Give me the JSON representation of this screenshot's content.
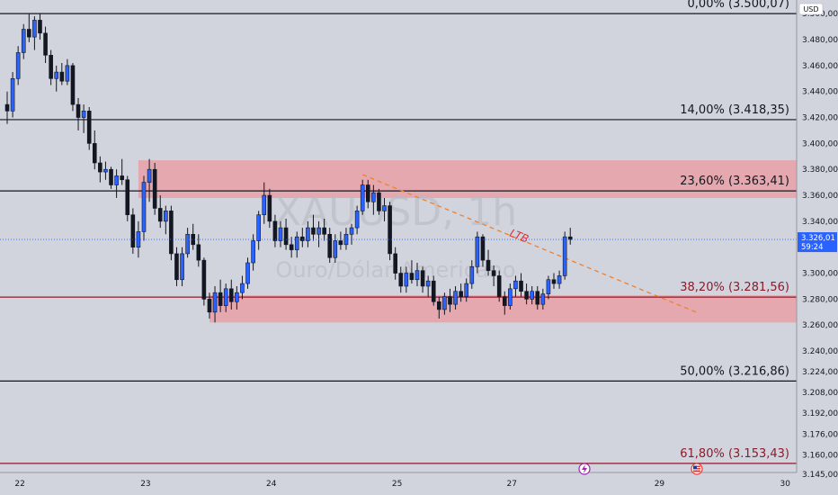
{
  "chart_data": {
    "type": "candlestick",
    "symbol": "XAUUSD, 1h",
    "description": "Ouro/Dólar Americano",
    "currency": "USD",
    "last_price": "3.326,01",
    "countdown": "59:24",
    "y_range": [
      3.145,
      3.505
    ],
    "y_ticks": [
      {
        "v": 3.5,
        "label": "3.500,00"
      },
      {
        "v": 3.48,
        "label": "3.480,00"
      },
      {
        "v": 3.46,
        "label": "3.460,00"
      },
      {
        "v": 3.44,
        "label": "3.440,00"
      },
      {
        "v": 3.42,
        "label": "3.420,00"
      },
      {
        "v": 3.4,
        "label": "3.400,00"
      },
      {
        "v": 3.38,
        "label": "3.380,00"
      },
      {
        "v": 3.36,
        "label": "3.360,00"
      },
      {
        "v": 3.34,
        "label": "3.340,00"
      },
      {
        "v": 3.3,
        "label": "3.300,00"
      },
      {
        "v": 3.28,
        "label": "3.280,00"
      },
      {
        "v": 3.26,
        "label": "3.260,00"
      },
      {
        "v": 3.24,
        "label": "3.240,00"
      },
      {
        "v": 3.224,
        "label": "3.224,00"
      },
      {
        "v": 3.208,
        "label": "3.208,00"
      },
      {
        "v": 3.192,
        "label": "3.192,00"
      },
      {
        "v": 3.176,
        "label": "3.176,00"
      },
      {
        "v": 3.16,
        "label": "3.160,00"
      },
      {
        "v": 3.145,
        "label": "3.145,00"
      }
    ],
    "x_ticks": [
      {
        "i": 1,
        "label": "22"
      },
      {
        "i": 24,
        "label": "23"
      },
      {
        "i": 47,
        "label": "24"
      },
      {
        "i": 70,
        "label": "25"
      },
      {
        "i": 91,
        "label": "27"
      },
      {
        "i": 118,
        "label": "29"
      },
      {
        "i": 141,
        "label": "30"
      }
    ],
    "fib_levels": [
      {
        "pct": "0,00%",
        "price": 3.50007,
        "label": "0,00% (3.500,07)",
        "color": "#131722"
      },
      {
        "pct": "14,00%",
        "price": 3.41835,
        "label": "14,00% (3.418,35)",
        "color": "#131722"
      },
      {
        "pct": "23,60%",
        "price": 3.36341,
        "label": "23,60% (3.363,41)",
        "color": "#131722"
      },
      {
        "pct": "38,20%",
        "price": 3.28156,
        "label": "38,20% (3.281,56)",
        "color": "#8b1a2b"
      },
      {
        "pct": "50,00%",
        "price": 3.21686,
        "label": "50,00% (3.216,86)",
        "color": "#131722"
      },
      {
        "pct": "61,80%",
        "price": 3.15343,
        "label": "61,80% (3.153,43)",
        "color": "#8b1a2b"
      }
    ],
    "zones": [
      {
        "from_i": 24,
        "to_i": 146,
        "top": 3.387,
        "bottom": 3.358,
        "color": "#e8a0a6"
      },
      {
        "from_i": 37,
        "to_i": 146,
        "top": 3.283,
        "bottom": 3.262,
        "color": "#e8a0a6"
      }
    ],
    "trendline": {
      "label": "LTB",
      "x1_i": 65,
      "y1": 3.376,
      "x2_i": 126,
      "y2": 3.27,
      "color": "#f08030"
    },
    "candles": [
      [
        3.43,
        3.44,
        3.415,
        3.425
      ],
      [
        3.425,
        3.455,
        3.42,
        3.45
      ],
      [
        3.45,
        3.475,
        3.445,
        3.47
      ],
      [
        3.47,
        3.492,
        3.465,
        3.488
      ],
      [
        3.488,
        3.5,
        3.478,
        3.482
      ],
      [
        3.482,
        3.498,
        3.472,
        3.495
      ],
      [
        3.495,
        3.5,
        3.48,
        3.485
      ],
      [
        3.485,
        3.49,
        3.462,
        3.468
      ],
      [
        3.468,
        3.472,
        3.445,
        3.45
      ],
      [
        3.45,
        3.46,
        3.44,
        3.455
      ],
      [
        3.455,
        3.462,
        3.445,
        3.448
      ],
      [
        3.448,
        3.465,
        3.445,
        3.46
      ],
      [
        3.46,
        3.462,
        3.425,
        3.43
      ],
      [
        3.43,
        3.435,
        3.41,
        3.42
      ],
      [
        3.42,
        3.43,
        3.408,
        3.425
      ],
      [
        3.425,
        3.428,
        3.395,
        3.4
      ],
      [
        3.4,
        3.41,
        3.38,
        3.385
      ],
      [
        3.385,
        3.39,
        3.37,
        3.378
      ],
      [
        3.378,
        3.386,
        3.372,
        3.38
      ],
      [
        3.38,
        3.382,
        3.365,
        3.368
      ],
      [
        3.368,
        3.38,
        3.358,
        3.375
      ],
      [
        3.375,
        3.388,
        3.368,
        3.372
      ],
      [
        3.372,
        3.375,
        3.34,
        3.345
      ],
      [
        3.345,
        3.35,
        3.315,
        3.32
      ],
      [
        3.32,
        3.34,
        3.312,
        3.332
      ],
      [
        3.332,
        3.375,
        3.325,
        3.37
      ],
      [
        3.37,
        3.388,
        3.355,
        3.38
      ],
      [
        3.38,
        3.385,
        3.345,
        3.35
      ],
      [
        3.35,
        3.36,
        3.335,
        3.34
      ],
      [
        3.34,
        3.352,
        3.33,
        3.348
      ],
      [
        3.348,
        3.352,
        3.31,
        3.315
      ],
      [
        3.315,
        3.32,
        3.29,
        3.295
      ],
      [
        3.295,
        3.32,
        3.29,
        3.315
      ],
      [
        3.315,
        3.335,
        3.312,
        3.33
      ],
      [
        3.33,
        3.338,
        3.318,
        3.322
      ],
      [
        3.322,
        3.33,
        3.305,
        3.31
      ],
      [
        3.31,
        3.312,
        3.275,
        3.28
      ],
      [
        3.28,
        3.285,
        3.265,
        3.27
      ],
      [
        3.27,
        3.29,
        3.262,
        3.285
      ],
      [
        3.285,
        3.295,
        3.27,
        3.275
      ],
      [
        3.275,
        3.292,
        3.27,
        3.288
      ],
      [
        3.288,
        3.295,
        3.272,
        3.278
      ],
      [
        3.278,
        3.29,
        3.272,
        3.285
      ],
      [
        3.285,
        3.298,
        3.28,
        3.292
      ],
      [
        3.292,
        3.312,
        3.288,
        3.308
      ],
      [
        3.308,
        3.33,
        3.302,
        3.325
      ],
      [
        3.325,
        3.348,
        3.318,
        3.345
      ],
      [
        3.345,
        3.37,
        3.338,
        3.36
      ],
      [
        3.36,
        3.365,
        3.335,
        3.34
      ],
      [
        3.34,
        3.345,
        3.32,
        3.325
      ],
      [
        3.325,
        3.34,
        3.32,
        3.335
      ],
      [
        3.335,
        3.342,
        3.318,
        3.322
      ],
      [
        3.322,
        3.328,
        3.312,
        3.318
      ],
      [
        3.318,
        3.332,
        3.312,
        3.328
      ],
      [
        3.328,
        3.335,
        3.32,
        3.325
      ],
      [
        3.325,
        3.34,
        3.32,
        3.335
      ],
      [
        3.335,
        3.345,
        3.325,
        3.33
      ],
      [
        3.33,
        3.34,
        3.32,
        3.335
      ],
      [
        3.335,
        3.342,
        3.325,
        3.33
      ],
      [
        3.33,
        3.335,
        3.308,
        3.312
      ],
      [
        3.312,
        3.33,
        3.308,
        3.325
      ],
      [
        3.325,
        3.332,
        3.318,
        3.322
      ],
      [
        3.322,
        3.335,
        3.318,
        3.33
      ],
      [
        3.33,
        3.338,
        3.322,
        3.335
      ],
      [
        3.335,
        3.352,
        3.33,
        3.348
      ],
      [
        3.348,
        3.372,
        3.345,
        3.368
      ],
      [
        3.368,
        3.372,
        3.35,
        3.355
      ],
      [
        3.355,
        3.368,
        3.345,
        3.362
      ],
      [
        3.362,
        3.365,
        3.345,
        3.348
      ],
      [
        3.348,
        3.358,
        3.34,
        3.352
      ],
      [
        3.352,
        3.355,
        3.31,
        3.315
      ],
      [
        3.315,
        3.32,
        3.295,
        3.3
      ],
      [
        3.3,
        3.305,
        3.285,
        3.29
      ],
      [
        3.29,
        3.305,
        3.285,
        3.3
      ],
      [
        3.3,
        3.31,
        3.292,
        3.295
      ],
      [
        3.295,
        3.308,
        3.29,
        3.302
      ],
      [
        3.302,
        3.305,
        3.285,
        3.29
      ],
      [
        3.29,
        3.298,
        3.282,
        3.294
      ],
      [
        3.294,
        3.298,
        3.275,
        3.278
      ],
      [
        3.278,
        3.282,
        3.265,
        3.272
      ],
      [
        3.272,
        3.285,
        3.268,
        3.282
      ],
      [
        3.282,
        3.288,
        3.27,
        3.276
      ],
      [
        3.276,
        3.29,
        3.272,
        3.286
      ],
      [
        3.286,
        3.292,
        3.278,
        3.282
      ],
      [
        3.282,
        3.296,
        3.278,
        3.292
      ],
      [
        3.292,
        3.31,
        3.288,
        3.305
      ],
      [
        3.305,
        3.332,
        3.3,
        3.328
      ],
      [
        3.328,
        3.33,
        3.305,
        3.31
      ],
      [
        3.31,
        3.318,
        3.298,
        3.302
      ],
      [
        3.302,
        3.306,
        3.29,
        3.298
      ],
      [
        3.298,
        3.302,
        3.278,
        3.282
      ],
      [
        3.282,
        3.286,
        3.268,
        3.275
      ],
      [
        3.275,
        3.292,
        3.272,
        3.288
      ],
      [
        3.288,
        3.298,
        3.282,
        3.294
      ],
      [
        3.294,
        3.3,
        3.282,
        3.286
      ],
      [
        3.286,
        3.292,
        3.276,
        3.28
      ],
      [
        3.28,
        3.29,
        3.276,
        3.286
      ],
      [
        3.286,
        3.29,
        3.272,
        3.276
      ],
      [
        3.276,
        3.288,
        3.272,
        3.284
      ],
      [
        3.284,
        3.298,
        3.28,
        3.295
      ],
      [
        3.295,
        3.3,
        3.288,
        3.292
      ],
      [
        3.292,
        3.302,
        3.288,
        3.298
      ],
      [
        3.298,
        3.332,
        3.295,
        3.328
      ],
      [
        3.328,
        3.335,
        3.322,
        3.326
      ]
    ]
  }
}
